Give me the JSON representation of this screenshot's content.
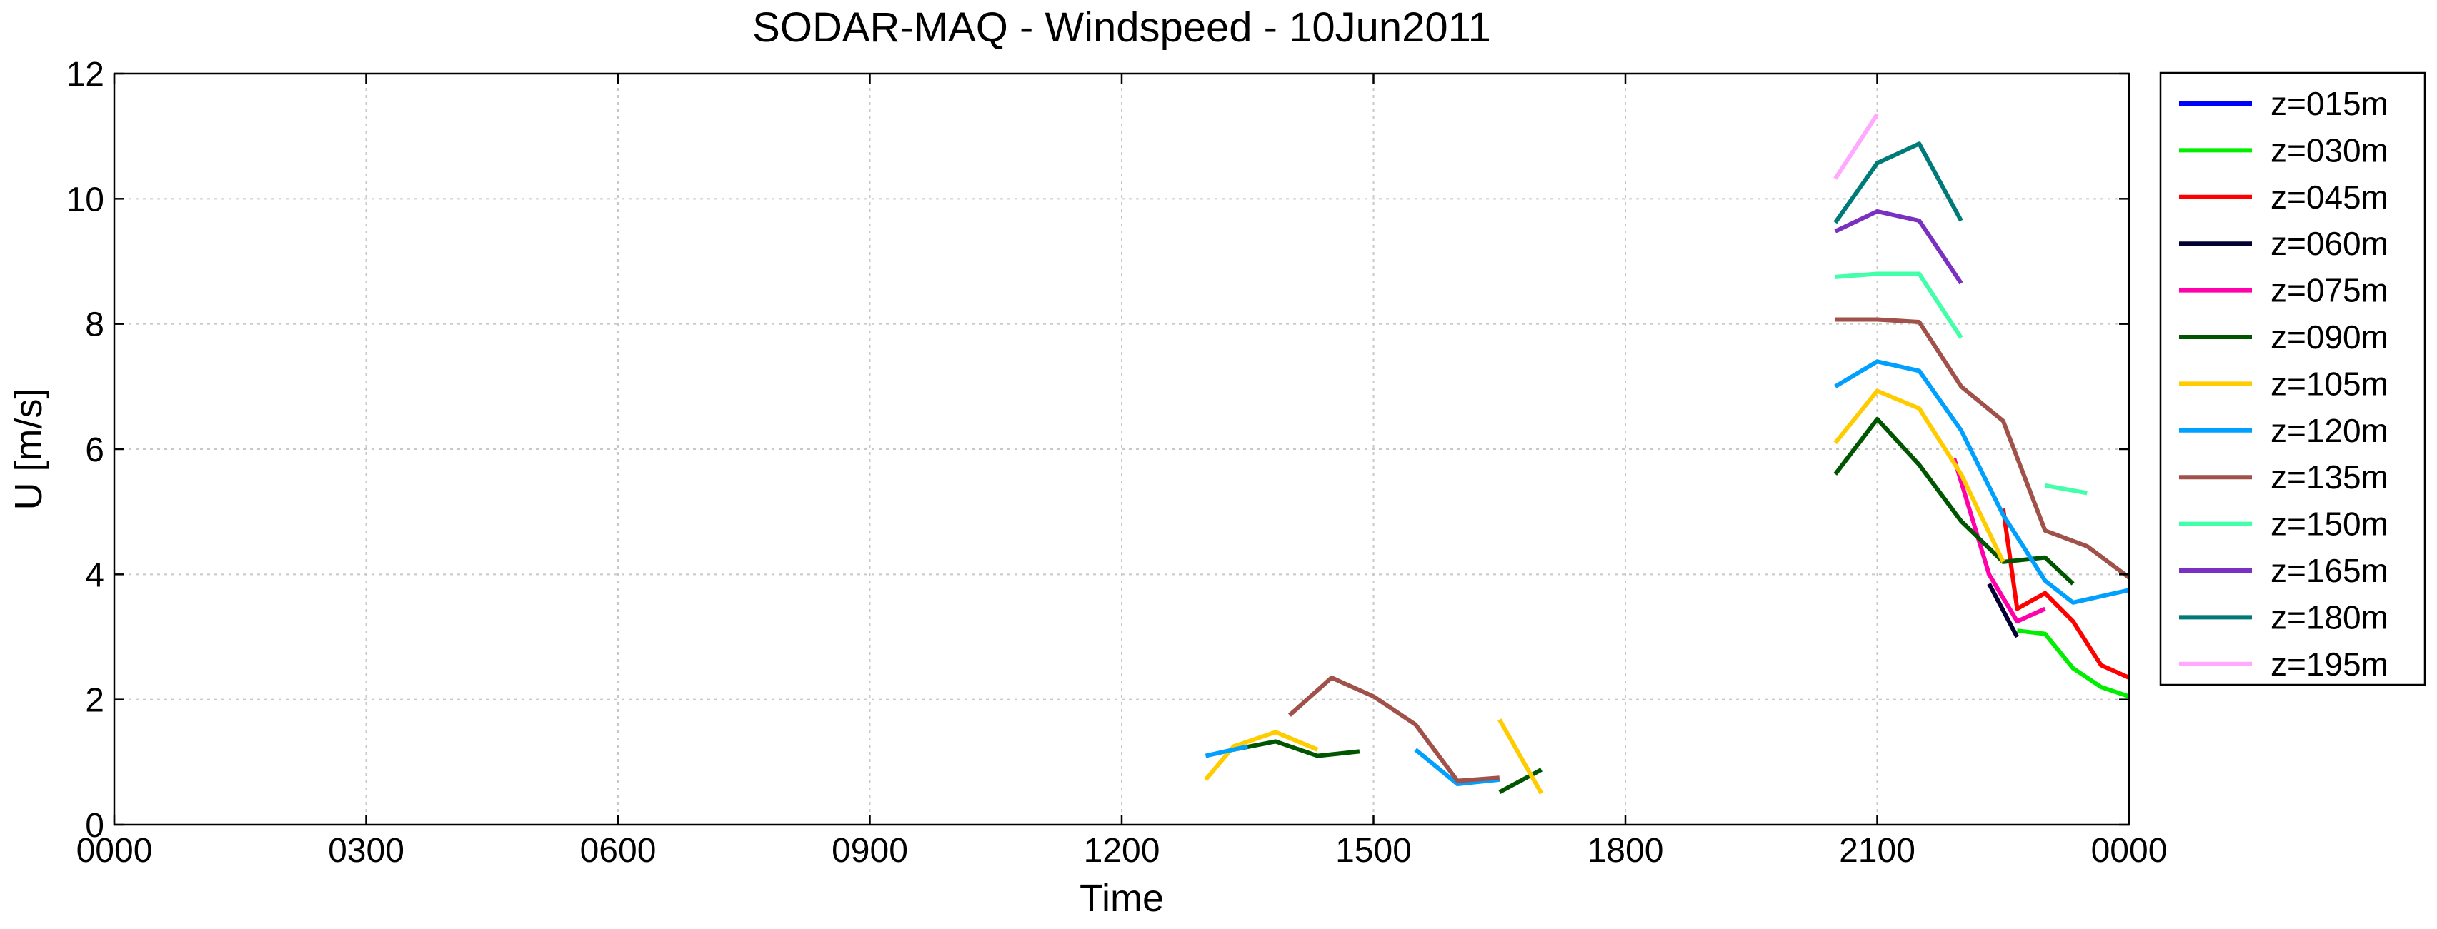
{
  "chart_data": {
    "type": "line",
    "title": "SODAR-MAQ - Windspeed - 10Jun2011",
    "xlabel": "Time",
    "ylabel": "U [m/s]",
    "xlim": [
      0,
      24
    ],
    "ylim": [
      0,
      12
    ],
    "x_unit": "hours",
    "x_ticks": [
      0,
      3,
      6,
      9,
      12,
      15,
      18,
      21,
      24
    ],
    "x_tick_labels": [
      "0000",
      "0300",
      "0600",
      "0900",
      "1200",
      "1500",
      "1800",
      "2100",
      "0000"
    ],
    "y_ticks": [
      0,
      2,
      4,
      6,
      8,
      10,
      12
    ],
    "y_tick_labels": [
      "0",
      "2",
      "4",
      "6",
      "8",
      "10",
      "12"
    ],
    "grid": true,
    "legend_position": "outside-right",
    "series": [
      {
        "name": "z=015m",
        "color": "#0000ff",
        "segments": []
      },
      {
        "name": "z=030m",
        "color": "#00ee00",
        "segments": [
          [
            [
              22.667,
              3.1
            ],
            [
              23.0,
              3.05
            ],
            [
              23.333,
              2.5
            ],
            [
              23.667,
              2.2
            ],
            [
              24.0,
              2.05
            ]
          ]
        ]
      },
      {
        "name": "z=045m",
        "color": "#ff0000",
        "segments": [
          [
            [
              22.5,
              5.05
            ],
            [
              22.667,
              3.45
            ],
            [
              23.0,
              3.7
            ],
            [
              23.333,
              3.25
            ],
            [
              23.667,
              2.55
            ],
            [
              24.0,
              2.35
            ]
          ]
        ]
      },
      {
        "name": "z=060m",
        "color": "#000033",
        "segments": [
          [
            [
              22.333,
              3.85
            ],
            [
              22.667,
              3.0
            ]
          ]
        ]
      },
      {
        "name": "z=075m",
        "color": "#ff00aa",
        "segments": [
          [
            [
              21.917,
              5.85
            ],
            [
              22.333,
              4.0
            ],
            [
              22.667,
              3.25
            ],
            [
              23.0,
              3.45
            ]
          ]
        ]
      },
      {
        "name": "z=090m",
        "color": "#005500",
        "segments": [
          [
            [
              13.333,
              1.2
            ],
            [
              13.833,
              1.33
            ],
            [
              14.333,
              1.1
            ],
            [
              14.833,
              1.17
            ]
          ],
          [
            [
              16.5,
              0.52
            ],
            [
              17.0,
              0.88
            ]
          ],
          [
            [
              20.5,
              5.6
            ],
            [
              21.0,
              6.48
            ],
            [
              21.5,
              5.75
            ],
            [
              22.0,
              4.85
            ],
            [
              22.5,
              4.2
            ],
            [
              23.0,
              4.27
            ],
            [
              23.333,
              3.85
            ]
          ]
        ]
      },
      {
        "name": "z=105m",
        "color": "#ffcc00",
        "segments": [
          [
            [
              13.0,
              0.72
            ],
            [
              13.333,
              1.25
            ],
            [
              13.833,
              1.48
            ],
            [
              14.333,
              1.2
            ]
          ],
          [
            [
              16.5,
              1.68
            ],
            [
              17.0,
              0.5
            ]
          ],
          [
            [
              20.5,
              6.1
            ],
            [
              21.0,
              6.93
            ],
            [
              21.5,
              6.65
            ],
            [
              22.0,
              5.6
            ],
            [
              22.5,
              4.2
            ]
          ]
        ]
      },
      {
        "name": "z=120m",
        "color": "#00a0ff",
        "segments": [
          [
            [
              13.0,
              1.1
            ],
            [
              13.5,
              1.25
            ]
          ],
          [
            [
              15.5,
              1.2
            ],
            [
              16.0,
              0.65
            ],
            [
              16.5,
              0.72
            ]
          ],
          [
            [
              20.5,
              7.0
            ],
            [
              21.0,
              7.4
            ],
            [
              21.5,
              7.25
            ],
            [
              22.0,
              6.3
            ],
            [
              22.5,
              4.95
            ],
            [
              23.0,
              3.9
            ],
            [
              23.333,
              3.55
            ],
            [
              24.0,
              3.75
            ]
          ]
        ]
      },
      {
        "name": "z=135m",
        "color": "#a0524a",
        "segments": [
          [
            [
              14.0,
              1.75
            ],
            [
              14.5,
              2.35
            ],
            [
              15.0,
              2.05
            ],
            [
              15.5,
              1.6
            ],
            [
              16.0,
              0.7
            ],
            [
              16.5,
              0.75
            ]
          ],
          [
            [
              20.5,
              8.07
            ],
            [
              21.0,
              8.07
            ],
            [
              21.5,
              8.03
            ],
            [
              22.0,
              7.0
            ],
            [
              22.5,
              6.45
            ],
            [
              23.0,
              4.7
            ],
            [
              23.5,
              4.45
            ],
            [
              24.0,
              3.95
            ]
          ]
        ]
      },
      {
        "name": "z=150m",
        "color": "#44ffaa",
        "segments": [
          [
            [
              20.5,
              8.75
            ],
            [
              21.0,
              8.8
            ],
            [
              21.5,
              8.8
            ],
            [
              22.0,
              7.78
            ]
          ],
          [
            [
              23.0,
              5.42
            ],
            [
              23.5,
              5.3
            ]
          ]
        ]
      },
      {
        "name": "z=165m",
        "color": "#7a30c0",
        "segments": [
          [
            [
              20.5,
              9.48
            ],
            [
              21.0,
              9.8
            ],
            [
              21.5,
              9.65
            ],
            [
              22.0,
              8.65
            ]
          ]
        ]
      },
      {
        "name": "z=180m",
        "color": "#007a78",
        "segments": [
          [
            [
              20.5,
              9.62
            ],
            [
              21.0,
              10.57
            ],
            [
              21.5,
              10.88
            ],
            [
              22.0,
              9.65
            ]
          ]
        ]
      },
      {
        "name": "z=195m",
        "color": "#ffaaff",
        "segments": [
          [
            [
              20.5,
              10.32
            ],
            [
              21.0,
              11.35
            ]
          ]
        ]
      }
    ]
  }
}
